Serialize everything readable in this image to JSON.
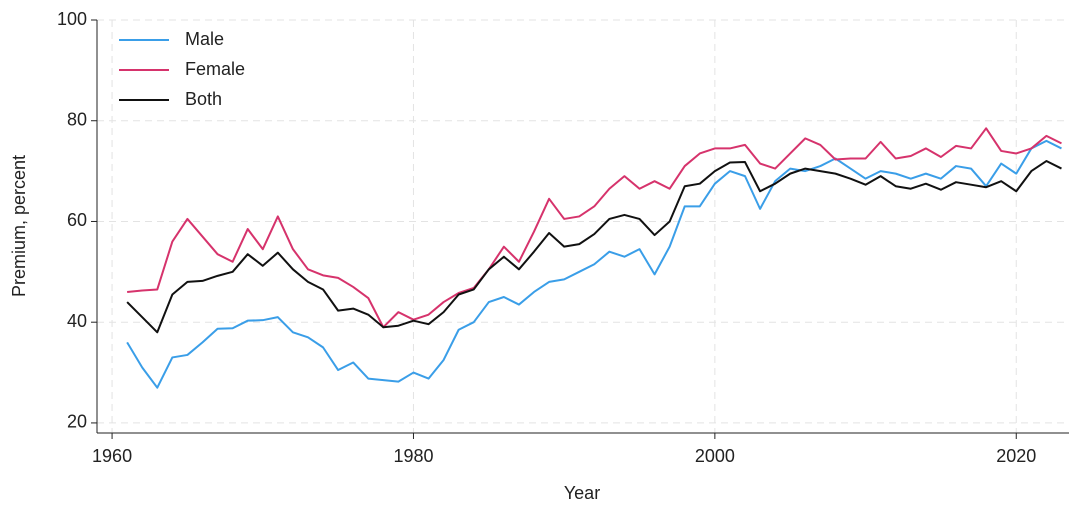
{
  "chart_data": {
    "type": "line",
    "x_label": "Year",
    "y_label": "Premium, percent",
    "x": [
      1961,
      1962,
      1963,
      1964,
      1965,
      1966,
      1967,
      1968,
      1969,
      1970,
      1971,
      1972,
      1973,
      1974,
      1975,
      1976,
      1977,
      1978,
      1979,
      1980,
      1981,
      1982,
      1983,
      1984,
      1985,
      1986,
      1987,
      1988,
      1989,
      1990,
      1991,
      1992,
      1993,
      1994,
      1995,
      1996,
      1997,
      1998,
      1999,
      2000,
      2001,
      2002,
      2003,
      2004,
      2005,
      2006,
      2007,
      2008,
      2009,
      2010,
      2011,
      2012,
      2013,
      2014,
      2015,
      2016,
      2017,
      2018,
      2019,
      2020,
      2021,
      2022,
      2023
    ],
    "series": [
      {
        "name": "Male",
        "color": "#3a9ee8",
        "values": [
          36,
          31,
          27,
          33,
          33.5,
          36,
          38.7,
          38.8,
          40.3,
          40.4,
          41,
          38,
          37,
          35,
          30.5,
          32,
          28.8,
          28.5,
          28.2,
          30,
          28.8,
          32.5,
          38.5,
          40,
          44,
          45,
          43.5,
          46,
          48,
          48.5,
          50,
          51.5,
          54,
          53,
          54.5,
          49.5,
          55,
          63,
          63,
          67.5,
          70,
          69,
          62.5,
          68,
          70.5,
          70,
          71,
          72.5,
          70.5,
          68.5,
          70,
          69.5,
          68.5,
          69.5,
          68.5,
          71,
          70.5,
          67,
          71.5,
          69.5,
          74.5,
          76,
          74.5
        ]
      },
      {
        "name": "Female",
        "color": "#d6336c",
        "values": [
          46,
          46.3,
          46.5,
          56,
          60.5,
          57,
          53.5,
          52,
          58.5,
          54.5,
          61,
          54.5,
          50.5,
          49.3,
          48.8,
          47,
          44.8,
          39,
          42,
          40.5,
          41.5,
          44,
          45.8,
          46.8,
          50.5,
          55,
          52,
          58,
          64.5,
          60.5,
          61,
          63,
          66.5,
          69,
          66.5,
          68,
          66.5,
          71,
          73.5,
          74.5,
          74.5,
          75.2,
          71.5,
          70.5,
          73.5,
          76.5,
          75.2,
          72.3,
          72.5,
          72.5,
          75.8,
          72.5,
          73,
          74.5,
          72.8,
          75,
          74.5,
          78.5,
          74,
          73.5,
          74.5,
          77,
          75.5
        ]
      },
      {
        "name": "Both",
        "color": "#111111",
        "values": [
          44,
          41,
          38,
          45.5,
          48,
          48.2,
          49.2,
          50,
          53.5,
          51.2,
          53.8,
          50.5,
          48,
          46.5,
          42.3,
          42.7,
          41.5,
          39,
          39.3,
          40.3,
          39.6,
          42,
          45.5,
          46.5,
          50.5,
          53,
          50.5,
          54,
          57.7,
          55,
          55.5,
          57.5,
          60.5,
          61.3,
          60.5,
          57.3,
          60,
          67,
          67.5,
          70,
          71.7,
          71.8,
          66,
          67.5,
          69.5,
          70.5,
          70,
          69.5,
          68.5,
          67.3,
          69,
          67,
          66.5,
          67.5,
          66.3,
          67.8,
          67.3,
          66.8,
          68,
          66,
          70,
          72,
          70.5
        ]
      }
    ],
    "xlim": [
      1959,
      2023.5
    ],
    "ylim": [
      18,
      100
    ],
    "xticks": [
      1960,
      1980,
      2000,
      2020
    ],
    "yticks": [
      20,
      40,
      60,
      80,
      100
    ],
    "grid": true,
    "legend": "top-left"
  }
}
